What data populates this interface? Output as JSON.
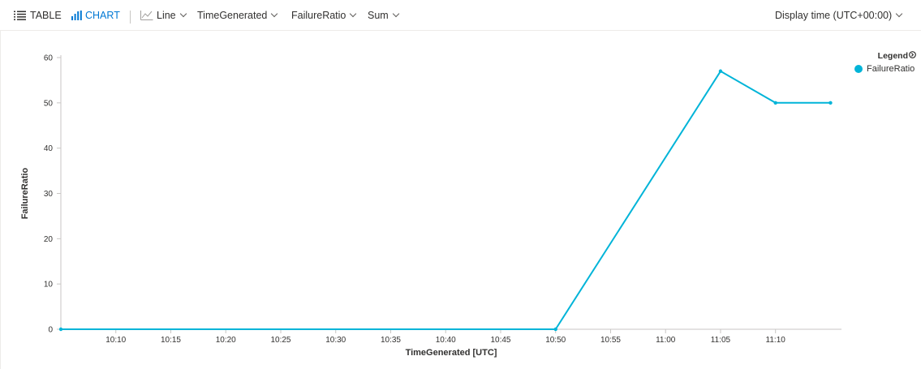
{
  "toolbar": {
    "table_label": "TABLE",
    "chart_label": "CHART",
    "chart_type": "Line",
    "x_column": "TimeGenerated",
    "y_column": "FailureRatio",
    "aggregation": "Sum",
    "display_time": "Display time (UTC+00:00)",
    "accent_color": "#0078d4"
  },
  "legend": {
    "title": "Legend",
    "entries": [
      {
        "name": "FailureRatio",
        "color": "#00b4d8"
      }
    ]
  },
  "chart_data": {
    "type": "line",
    "xlabel": "TimeGenerated [UTC]",
    "ylabel": "FailureRatio",
    "xlim": [
      "10:05",
      "11:16"
    ],
    "ylim": [
      0,
      60
    ],
    "x_ticks": [
      "10:10",
      "10:15",
      "10:20",
      "10:25",
      "10:30",
      "10:35",
      "10:40",
      "10:45",
      "10:50",
      "10:55",
      "11:00",
      "11:05",
      "11:10"
    ],
    "y_ticks": [
      0,
      10,
      20,
      30,
      40,
      50,
      60
    ],
    "grid": false,
    "legend_position": "top-right",
    "series": [
      {
        "name": "FailureRatio",
        "color": "#00b4d8",
        "x": [
          "10:05",
          "10:50",
          "11:05",
          "11:10",
          "11:15"
        ],
        "y": [
          0,
          0,
          57,
          50,
          50
        ]
      }
    ]
  }
}
